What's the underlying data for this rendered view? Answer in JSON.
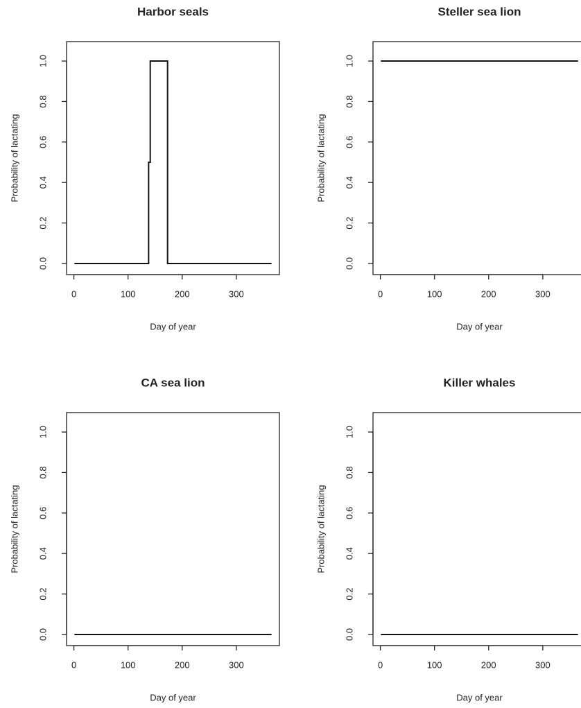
{
  "chart_data": [
    {
      "type": "line",
      "title": "Harbor seals",
      "x_label": "Day of year",
      "y_label": "Probability of lactating",
      "x": [
        1,
        138,
        138,
        141,
        141,
        173,
        173,
        365
      ],
      "values": [
        0,
        0,
        0.5,
        0.5,
        1,
        1,
        0,
        0
      ],
      "color": "#111111",
      "xlim": [
        -13.56,
        379.56
      ],
      "ylim": [
        -0.055,
        1.096
      ],
      "xticks": [
        0,
        100,
        200,
        300
      ],
      "yticks": [
        {
          "value": 0,
          "label": "0.0"
        },
        {
          "value": 0.2,
          "label": "0.2"
        },
        {
          "value": 0.4,
          "label": "0.4"
        },
        {
          "value": 0.6,
          "label": "0.6"
        },
        {
          "value": 0.8,
          "label": "0.8"
        },
        {
          "value": 1,
          "label": "1.0"
        }
      ]
    },
    {
      "type": "line",
      "title": "Steller sea lion",
      "x_label": "Day of year",
      "y_label": "Probability of lactating",
      "x": [
        1,
        365
      ],
      "values": [
        1,
        1
      ],
      "color": "#111111",
      "xlim": [
        -13.56,
        379.56
      ],
      "ylim": [
        -0.055,
        1.096
      ],
      "xticks": [
        0,
        100,
        200,
        300
      ],
      "yticks": [
        {
          "value": 0,
          "label": "0.0"
        },
        {
          "value": 0.2,
          "label": "0.2"
        },
        {
          "value": 0.4,
          "label": "0.4"
        },
        {
          "value": 0.6,
          "label": "0.6"
        },
        {
          "value": 0.8,
          "label": "0.8"
        },
        {
          "value": 1,
          "label": "1.0"
        }
      ]
    },
    {
      "type": "line",
      "title": "CA sea lion",
      "x_label": "Day of year",
      "y_label": "Probability of lactating",
      "x": [
        1,
        365
      ],
      "values": [
        0,
        0
      ],
      "color": "#111111",
      "xlim": [
        -13.56,
        379.56
      ],
      "ylim": [
        -0.055,
        1.096
      ],
      "xticks": [
        0,
        100,
        200,
        300
      ],
      "yticks": [
        {
          "value": 0,
          "label": "0.0"
        },
        {
          "value": 0.2,
          "label": "0.2"
        },
        {
          "value": 0.4,
          "label": "0.4"
        },
        {
          "value": 0.6,
          "label": "0.6"
        },
        {
          "value": 0.8,
          "label": "0.8"
        },
        {
          "value": 1,
          "label": "1.0"
        }
      ]
    },
    {
      "type": "line",
      "title": "Killer whales",
      "x_label": "Day of year",
      "y_label": "Probability of lactating",
      "x": [
        1,
        365
      ],
      "values": [
        0,
        0
      ],
      "color": "#111111",
      "xlim": [
        -13.56,
        379.56
      ],
      "ylim": [
        -0.055,
        1.096
      ],
      "xticks": [
        0,
        100,
        200,
        300
      ],
      "yticks": [
        {
          "value": 0,
          "label": "0.0"
        },
        {
          "value": 0.2,
          "label": "0.2"
        },
        {
          "value": 0.4,
          "label": "0.4"
        },
        {
          "value": 0.6,
          "label": "0.6"
        },
        {
          "value": 0.8,
          "label": "0.8"
        },
        {
          "value": 1,
          "label": "1.0"
        }
      ]
    }
  ]
}
